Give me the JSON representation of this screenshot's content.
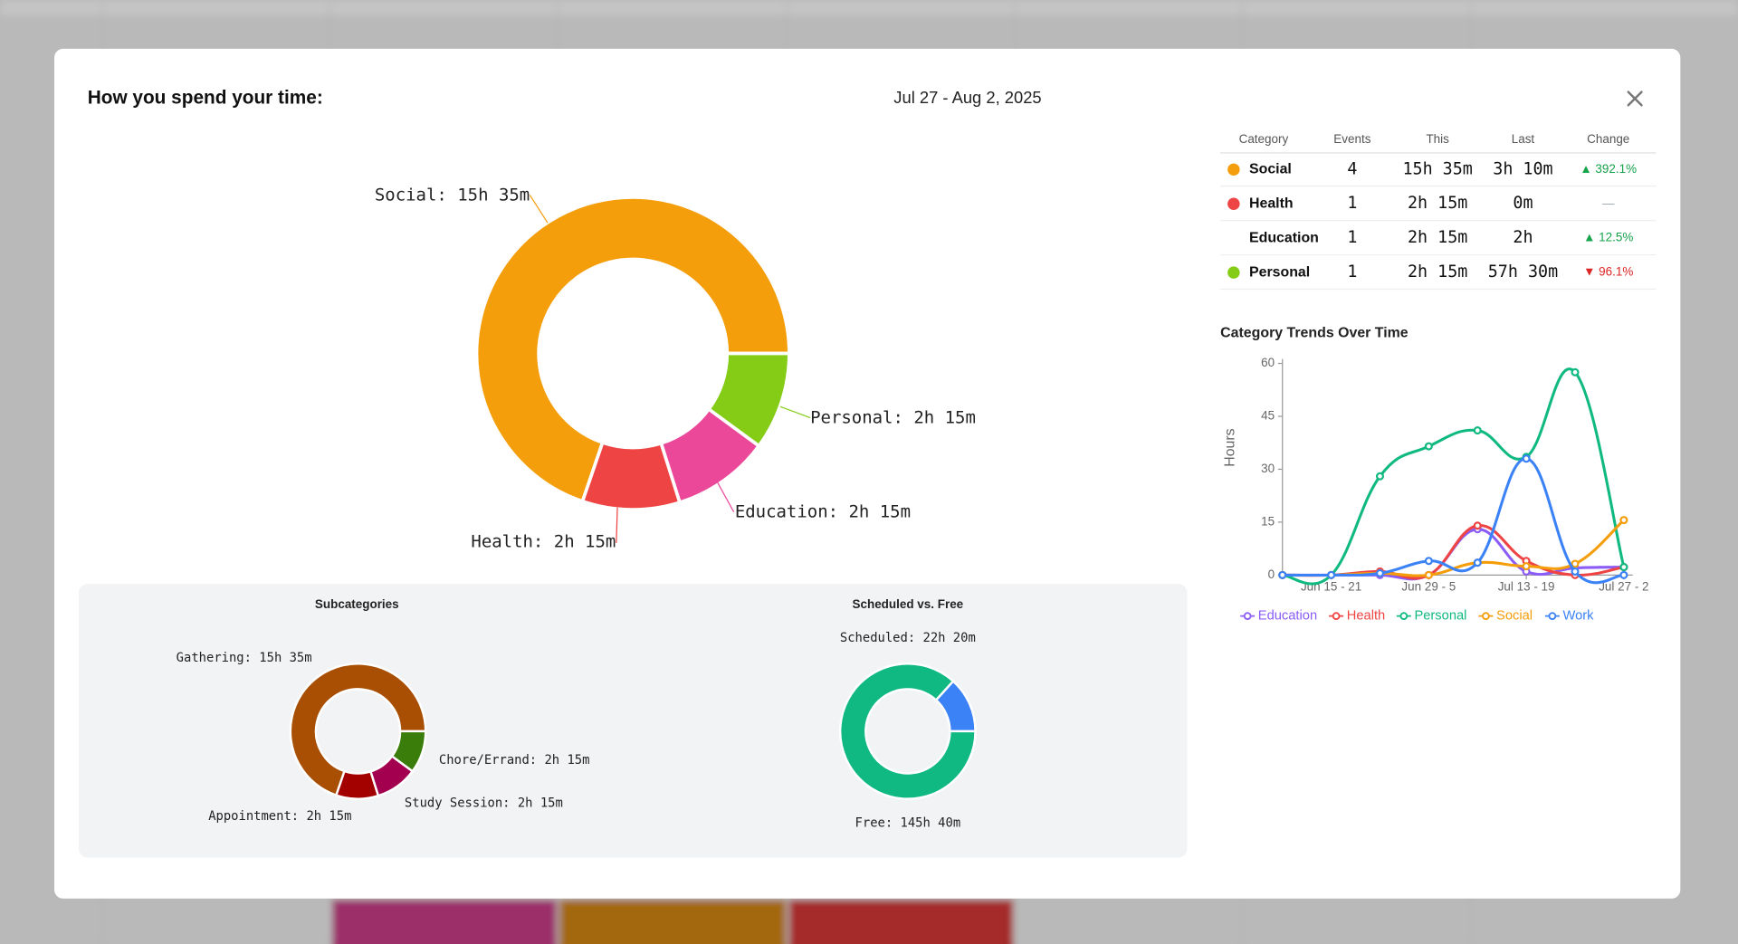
{
  "modal": {
    "title": "How you spend your time:",
    "date_range": "Jul 27 - Aug 2, 2025"
  },
  "table": {
    "headers": [
      "Category",
      "Events",
      "This",
      "Last",
      "Change"
    ],
    "rows": [
      [
        "Social",
        "4",
        "15h 35m",
        "3h 10m",
        "▲ 392.1%"
      ],
      [
        "Health",
        "1",
        "2h 15m",
        "0m",
        "—"
      ],
      [
        "Education",
        "1",
        "2h 15m",
        "2h",
        "▲ 12.5%"
      ],
      [
        "Personal",
        "1",
        "2h 15m",
        "57h 30m",
        "▼ 96.1%"
      ]
    ],
    "dot_colors": [
      "#f59e0b",
      "#ef4444",
      null,
      "#84cc16"
    ],
    "change_colors": [
      "#16a34a",
      "#9ca3af",
      "#16a34a",
      "#dc2626"
    ]
  },
  "chart_data": [
    {
      "type": "pie",
      "donut": true,
      "categories": [
        "Social",
        "Health",
        "Education",
        "Personal"
      ],
      "values": [
        935,
        135,
        135,
        135
      ],
      "value_labels": [
        "15h 35m",
        "2h 15m",
        "2h 15m",
        "2h 15m"
      ],
      "colors": [
        "#f59e0b",
        "#ef4444",
        "#ec4899",
        "#84cc16"
      ]
    },
    {
      "type": "pie",
      "donut": true,
      "title": "Subcategories",
      "categories": [
        "Gathering",
        "Appointment",
        "Study Session",
        "Chore/Errand"
      ],
      "values": [
        935,
        135,
        135,
        135
      ],
      "value_labels": [
        "15h 35m",
        "2h 15m",
        "2h 15m",
        "2h 15m"
      ],
      "colors": [
        "#a84f04",
        "#a30000",
        "#a3004f",
        "#3a7d0a"
      ]
    },
    {
      "type": "pie",
      "donut": true,
      "title": "Scheduled vs. Free",
      "categories": [
        "Scheduled",
        "Free"
      ],
      "values": [
        1340,
        8740
      ],
      "value_labels": [
        "22h 20m",
        "145h 40m"
      ],
      "colors": [
        "#3b82f6",
        "#10b981"
      ]
    },
    {
      "type": "line",
      "title": "Category Trends Over Time",
      "y_label": "Hours",
      "categories": [
        null,
        "Jun 15 - 21",
        null,
        "Jun 29 - 5",
        null,
        "Jul 13 - 19",
        null,
        "Jul 27 - 2"
      ],
      "series": [
        {
          "name": "Education",
          "color": "#8b5cf6",
          "values": [
            0,
            0,
            0,
            0,
            13,
            1,
            2,
            2.25
          ]
        },
        {
          "name": "Health",
          "color": "#ef4444",
          "values": [
            0,
            0,
            1,
            0,
            14,
            4,
            0,
            2.25
          ]
        },
        {
          "name": "Personal",
          "color": "#10b981",
          "values": [
            0,
            0,
            28,
            36.5,
            41,
            33.5,
            57.5,
            2.25
          ]
        },
        {
          "name": "Social",
          "color": "#f59e0b",
          "values": [
            0,
            0,
            0.5,
            0,
            3.5,
            2.5,
            3.17,
            15.58
          ]
        },
        {
          "name": "Work",
          "color": "#3b82f6",
          "values": [
            0,
            0,
            0.5,
            4,
            3.5,
            33,
            1,
            0
          ]
        }
      ],
      "ylim": [
        0,
        60
      ],
      "yticks": [
        0,
        15,
        30,
        45,
        60
      ],
      "legend": "bottom"
    }
  ]
}
